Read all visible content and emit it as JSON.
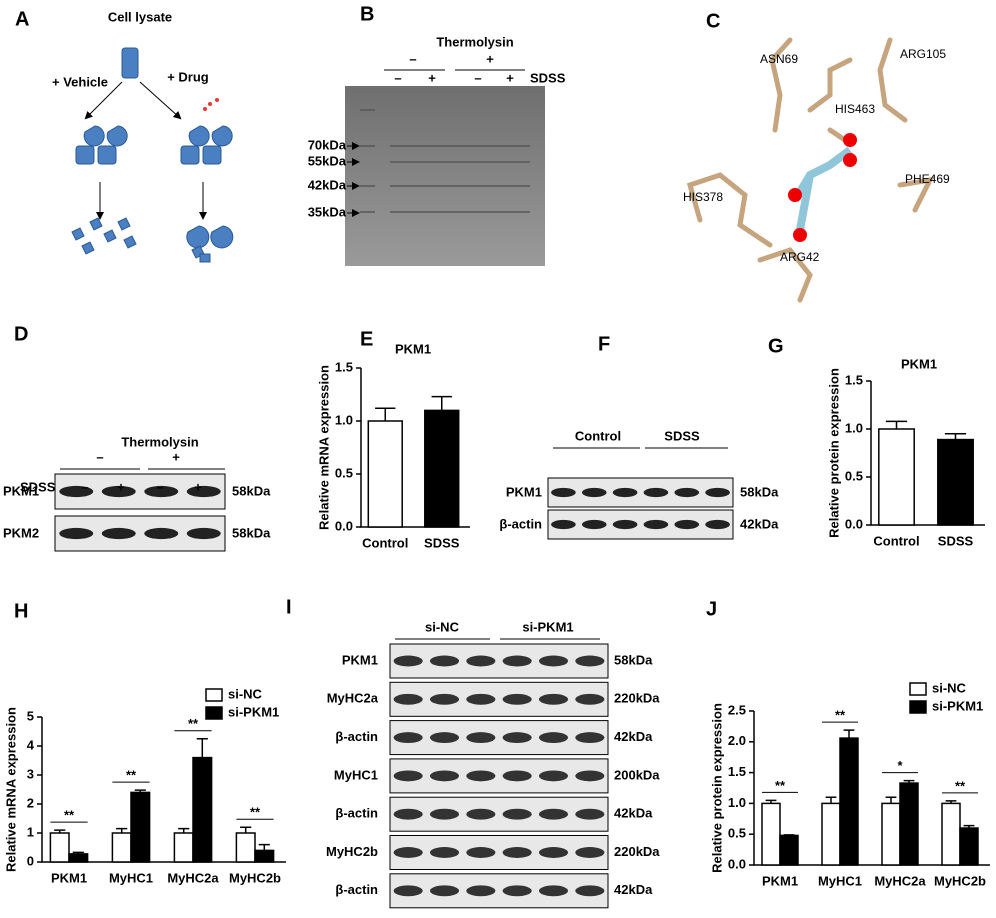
{
  "panel_labels": [
    "A",
    "B",
    "C",
    "D",
    "E",
    "F",
    "G",
    "H",
    "I",
    "J"
  ],
  "panel_a": {
    "title": "Cell lysate",
    "left": "+ Vehicle",
    "right": "+ Drug"
  },
  "panel_b": {
    "treatment": "Thermolysin",
    "treatment_levels": [
      "–",
      "+"
    ],
    "sdss": "SDSS",
    "sdss_levels": [
      "–",
      "+",
      "–",
      "+"
    ],
    "markers": [
      "70kDa",
      "55kDa",
      "42kDa",
      "35kDa"
    ]
  },
  "panel_c": {
    "residues": [
      "ASN69",
      "ARG105",
      "HIS463",
      "PHE469",
      "HIS378",
      "ARG42"
    ]
  },
  "panel_d": {
    "treatment": "Thermolysin",
    "treatment_levels": [
      "–",
      "+"
    ],
    "sdss": "SDSS",
    "sdss_levels": [
      "–",
      "+",
      "–",
      "+"
    ],
    "rows": [
      {
        "protein": "PKM1",
        "size": "58kDa"
      },
      {
        "protein": "PKM2",
        "size": "58kDa"
      }
    ]
  },
  "panel_f": {
    "groups": [
      "Control",
      "SDSS"
    ],
    "rows": [
      {
        "protein": "PKM1",
        "size": "58kDa"
      },
      {
        "protein": "β-actin",
        "size": "42kDa"
      }
    ]
  },
  "panel_i": {
    "groups": [
      "si-NC",
      "si-PKM1"
    ],
    "rows": [
      {
        "protein": "PKM1",
        "size": "58kDa"
      },
      {
        "protein": "MyHC2a",
        "size": "220kDa"
      },
      {
        "protein": "β-actin",
        "size": "42kDa"
      },
      {
        "protein": "MyHC1",
        "size": "200kDa"
      },
      {
        "protein": "β-actin",
        "size": "42kDa"
      },
      {
        "protein": "MyHC2b",
        "size": "220kDa"
      },
      {
        "protein": "β-actin",
        "size": "42kDa"
      }
    ]
  },
  "chart_data": [
    {
      "type": "bar",
      "title": "PKM1",
      "y_label": "Relative mRNA expression",
      "categories": [
        "Control",
        "SDSS"
      ],
      "values": [
        1.0,
        1.1
      ],
      "errors": [
        0.12,
        0.13
      ],
      "colors": [
        "#ffffff",
        "#000000"
      ],
      "ylim": [
        0,
        1.5
      ],
      "yticks": [
        {
          "value": 0,
          "label": "0.0"
        },
        0.5,
        {
          "value": 1,
          "label": "1.0"
        },
        1.5
      ]
    },
    {
      "type": "bar",
      "title": "PKM1",
      "y_label": "Relative protein expression",
      "categories": [
        "Control",
        "SDSS"
      ],
      "values": [
        1.0,
        0.89
      ],
      "errors": [
        0.08,
        0.06
      ],
      "colors": [
        "#ffffff",
        "#000000"
      ],
      "ylim": [
        0,
        1.5
      ],
      "yticks": [
        {
          "value": 0,
          "label": "0.0"
        },
        0.5,
        {
          "value": 1,
          "label": "1.0"
        },
        1.5
      ]
    },
    {
      "type": "bar",
      "y_label": "Relative mRNA expression",
      "categories": [
        "PKM1",
        "MyHC1",
        "MyHC2a",
        "MyHC2b"
      ],
      "series": [
        {
          "name": "si-NC",
          "color": "#ffffff",
          "values": [
            1.0,
            1.0,
            1.0,
            1.0
          ],
          "errors": [
            0.1,
            0.15,
            0.15,
            0.2
          ]
        },
        {
          "name": "si-PKM1",
          "color": "#000000",
          "values": [
            0.28,
            2.4,
            3.6,
            0.4
          ],
          "errors": [
            0.05,
            0.08,
            0.65,
            0.2
          ]
        }
      ],
      "significance": [
        "**",
        "**",
        "**",
        "**"
      ],
      "legend": "upper right",
      "ylim": [
        0,
        5
      ],
      "yticks": [
        0,
        1,
        2,
        3,
        4,
        5
      ]
    },
    {
      "type": "bar",
      "y_label": "Relative protein expression",
      "categories": [
        "PKM1",
        "MyHC1",
        "MyHC2a",
        "MyHC2b"
      ],
      "series": [
        {
          "name": "si-NC",
          "color": "#ffffff",
          "values": [
            1.0,
            1.0,
            1.0,
            1.0
          ],
          "errors": [
            0.05,
            0.1,
            0.1,
            0.04
          ]
        },
        {
          "name": "si-PKM1",
          "color": "#000000",
          "values": [
            0.48,
            2.06,
            1.33,
            0.6
          ],
          "errors": [
            0.01,
            0.13,
            0.04,
            0.04
          ]
        }
      ],
      "significance": [
        "**",
        "**",
        "*",
        "**"
      ],
      "legend": "upper right",
      "ylim": [
        0,
        2.5
      ],
      "yticks": [
        {
          "value": 0,
          "label": "0.0"
        },
        0.5,
        {
          "value": 1,
          "label": "1.0"
        },
        1.5,
        {
          "value": 2,
          "label": "2.0"
        },
        2.5
      ]
    }
  ]
}
